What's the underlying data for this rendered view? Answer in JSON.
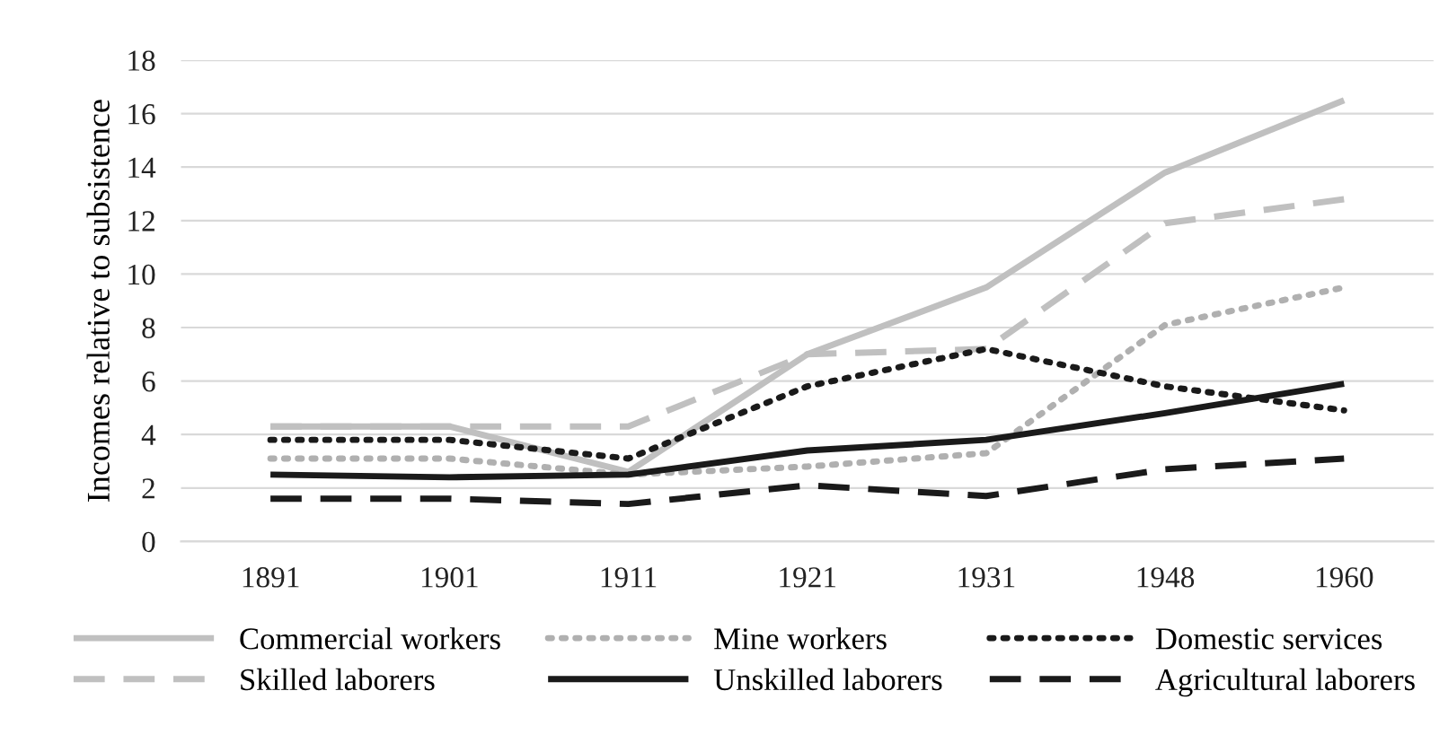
{
  "chart_data": {
    "type": "line",
    "ylabel": "Incomes relative to subsistence",
    "categories": [
      "1891",
      "1901",
      "1911",
      "1921",
      "1931",
      "1948",
      "1960"
    ],
    "series": [
      {
        "name": "Commercial workers",
        "color": "#c0c0c0",
        "line_style": "solid",
        "values": [
          4.3,
          4.3,
          2.6,
          7.0,
          9.5,
          13.8,
          16.5
        ]
      },
      {
        "name": "Skilled laborers",
        "color": "#c0c0c0",
        "line_style": "dashed",
        "values": [
          4.3,
          4.3,
          4.3,
          7.0,
          7.2,
          11.9,
          12.8
        ]
      },
      {
        "name": "Mine workers",
        "color": "#b0b0b0",
        "line_style": "dotted",
        "values": [
          3.1,
          3.1,
          2.5,
          2.8,
          3.3,
          8.1,
          9.5
        ]
      },
      {
        "name": "Unskilled laborers",
        "color": "#1a1a1a",
        "line_style": "solid",
        "values": [
          2.5,
          2.4,
          2.5,
          3.4,
          3.8,
          4.8,
          5.9
        ]
      },
      {
        "name": "Domestic services",
        "color": "#1a1a1a",
        "line_style": "dotted",
        "values": [
          3.8,
          3.8,
          3.1,
          5.8,
          7.2,
          5.8,
          4.9
        ]
      },
      {
        "name": "Agricultural laborers",
        "color": "#1a1a1a",
        "line_style": "dashed",
        "values": [
          1.6,
          1.6,
          1.4,
          2.1,
          1.7,
          2.7,
          3.1
        ]
      }
    ],
    "ylim": [
      0,
      18
    ],
    "yticks": [
      0,
      2,
      4,
      6,
      8,
      10,
      12,
      14,
      16,
      18
    ],
    "grid": "y",
    "legend": "bottom",
    "marker": "none"
  }
}
